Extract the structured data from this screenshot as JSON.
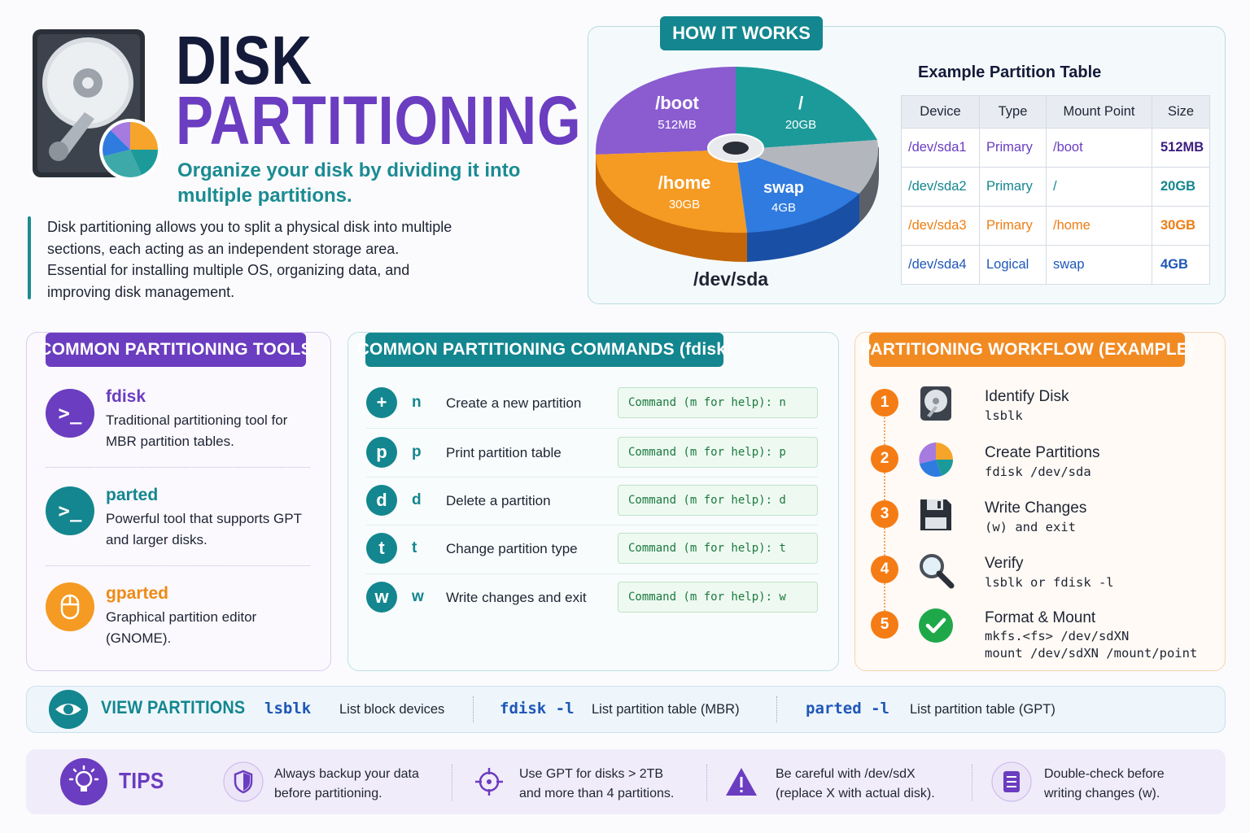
{
  "header": {
    "title_line1": "DISK",
    "title_line2": "PARTITIONING",
    "subtitle": "Organize your disk by dividing it into multiple partitions.",
    "intro": "Disk partitioning allows you to split a physical disk into multiple sections, each acting as an independent storage area. Essential for installing multiple OS, organizing data, and improving disk management."
  },
  "how_it_works": {
    "label": "HOW IT WORKS",
    "device": "/dev/sda",
    "slices": [
      {
        "name": "/boot",
        "size": "512MB",
        "color": "#8a5cd0"
      },
      {
        "name": "/",
        "size": "20GB",
        "color": "#1c9a9a"
      },
      {
        "name": "swap",
        "size": "4GB",
        "color": "#2f7be0"
      },
      {
        "name": "/home",
        "size": "30GB",
        "color": "#f59a22"
      }
    ],
    "table_title": "Example Partition Table",
    "table_headers": [
      "Device",
      "Type",
      "Mount Point",
      "Size"
    ],
    "table_rows": [
      {
        "device": "/dev/sda1",
        "type": "Primary",
        "mount": "/boot",
        "size": "512MB",
        "color": "#6b3dc0",
        "size_color": "#3b1f80"
      },
      {
        "device": "/dev/sda2",
        "type": "Primary",
        "mount": "/",
        "size": "20GB",
        "color": "#13868f",
        "size_color": "#13868f"
      },
      {
        "device": "/dev/sda3",
        "type": "Primary",
        "mount": "/home",
        "size": "30GB",
        "color": "#ef7d12",
        "size_color": "#ef7d12"
      },
      {
        "device": "/dev/sda4",
        "type": "Logical",
        "mount": "swap",
        "size": "4GB",
        "color": "#1f57b8",
        "size_color": "#1f57b8"
      }
    ]
  },
  "tools": {
    "label": "COMMON PARTITIONING TOOLS",
    "items": [
      {
        "name": "fdisk",
        "desc": "Traditional partitioning tool for MBR partition tables.",
        "glyph": ">_",
        "color": "#6b3dc0"
      },
      {
        "name": "parted",
        "desc": "Powerful tool that supports GPT and larger disks.",
        "glyph": ">_",
        "color": "#13868f"
      },
      {
        "name": "gparted",
        "desc": "Graphical partition editor (GNOME).",
        "icon": "mouse-icon",
        "color": "#f59a22"
      }
    ]
  },
  "commands": {
    "label": "COMMON PARTITIONING COMMANDS (fdisk)",
    "items": [
      {
        "glyph": "+",
        "key": "n",
        "desc": "Create a new partition",
        "example": "Command (m for help): n"
      },
      {
        "glyph": "p",
        "key": "p",
        "desc": "Print partition table",
        "example": "Command (m for help): p"
      },
      {
        "glyph": "d",
        "key": "d",
        "desc": "Delete a partition",
        "example": "Command (m for help): d"
      },
      {
        "glyph": "t",
        "key": "t",
        "desc": "Change partition type",
        "example": "Command (m for help): t"
      },
      {
        "glyph": "w",
        "key": "w",
        "desc": "Write changes and exit",
        "example": "Command (m for help): w"
      }
    ]
  },
  "workflow": {
    "label": "PARTITIONING WORKFLOW (EXAMPLE)",
    "steps": [
      {
        "n": "1",
        "title": "Identify Disk",
        "cmd": "lsblk",
        "icon": "hard-drive-icon"
      },
      {
        "n": "2",
        "title": "Create Partitions",
        "cmd": "fdisk /dev/sda",
        "icon": "pie-chart-icon"
      },
      {
        "n": "3",
        "title": "Write Changes",
        "cmd": "(w) and exit",
        "icon": "floppy-disk-icon"
      },
      {
        "n": "4",
        "title": "Verify",
        "cmd": "lsblk or fdisk -l",
        "icon": "magnifier-icon"
      },
      {
        "n": "5",
        "title": "Format & Mount",
        "cmd": "mkfs.<fs> /dev/sdXN\nmount /dev/sdXN /mount/point",
        "icon": "check-icon"
      }
    ]
  },
  "view": {
    "label": "VIEW PARTITIONS",
    "items": [
      {
        "cmd": "lsblk",
        "desc": "List block devices"
      },
      {
        "cmd": "fdisk -l",
        "desc": "List partition table (MBR)"
      },
      {
        "cmd": "parted -l",
        "desc": "List partition table (GPT)"
      }
    ]
  },
  "tips": {
    "label": "TIPS",
    "items": [
      {
        "text": "Always backup your data\nbefore partitioning.",
        "icon": "shield-icon"
      },
      {
        "text": "Use GPT for disks > 2TB\nand more than 4 partitions.",
        "icon": "crosshair-icon"
      },
      {
        "text": "Be careful with /dev/sdX\n(replace X with actual disk).",
        "icon": "warning-icon"
      },
      {
        "text": "Double-check before\nwriting changes (w).",
        "icon": "document-icon"
      }
    ]
  }
}
